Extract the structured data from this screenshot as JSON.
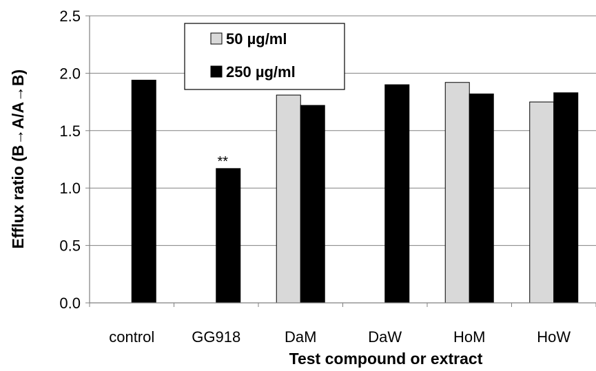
{
  "chart_data": {
    "type": "bar",
    "categories": [
      "control",
      "GG918",
      "DaM",
      "DaW",
      "HoM",
      "HoW"
    ],
    "series": [
      {
        "name": "50 µg/ml",
        "color": "#d9d9d9",
        "values": [
          null,
          null,
          1.81,
          null,
          1.92,
          1.75
        ]
      },
      {
        "name": "250 µg/ml",
        "color": "#000000",
        "values": [
          1.94,
          1.17,
          1.72,
          1.9,
          1.82,
          1.83
        ]
      }
    ],
    "title": "",
    "xlabel": "Test compound or extract",
    "ylabel": "Efflux ratio (B→A/A→B)",
    "ylim": [
      0,
      2.5
    ],
    "yticks": [
      "0.0",
      "0.5",
      "1.0",
      "1.5",
      "2.0",
      "2.5"
    ],
    "ytick_values": [
      0,
      0.5,
      1.0,
      1.5,
      2.0,
      2.5
    ],
    "grid": true,
    "legend_position": "top-left",
    "annotations": [
      {
        "text": "**",
        "category": "GG918",
        "series": "250 µg/ml"
      }
    ]
  }
}
